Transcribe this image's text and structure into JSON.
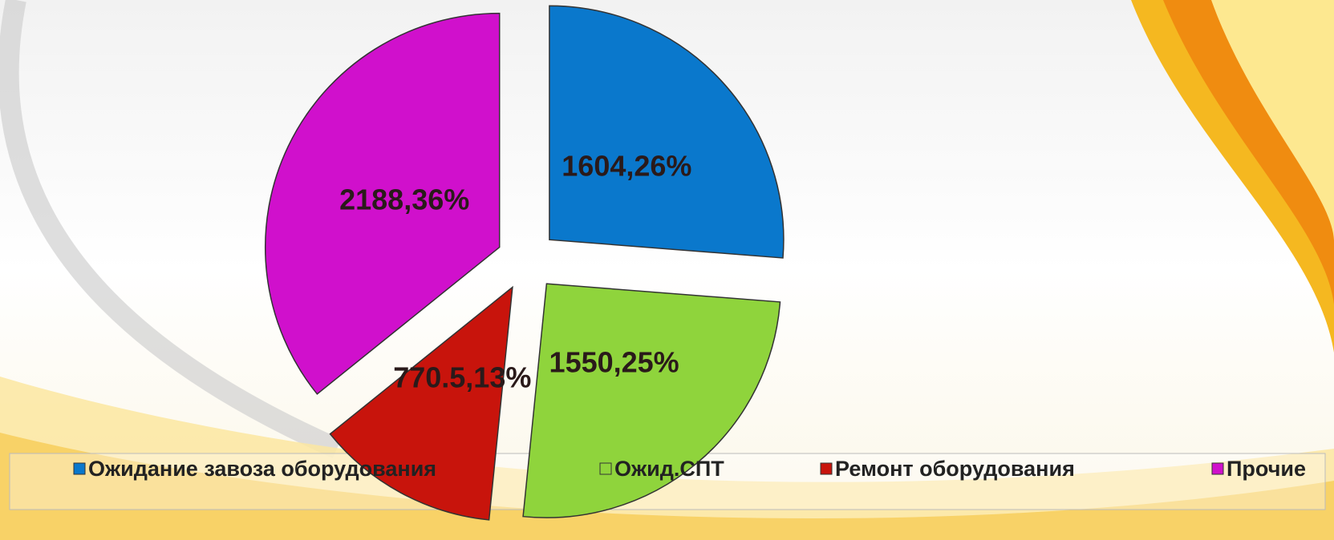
{
  "chart_data": {
    "type": "pie",
    "categories": [
      "Ожидание завоза оборудования",
      "Ожид.СПТ",
      "Ремонт оборудования",
      "Прочие"
    ],
    "values": [
      1604,
      1550,
      770.5,
      2188
    ],
    "value_labels": [
      "1604,26%",
      "1550,25%",
      "770.5,13%",
      "2188,36%"
    ],
    "colors": [
      "#0a78cc",
      "#8fd43c",
      "#c8140c",
      "#d010cc"
    ],
    "legend": "bottom"
  }
}
